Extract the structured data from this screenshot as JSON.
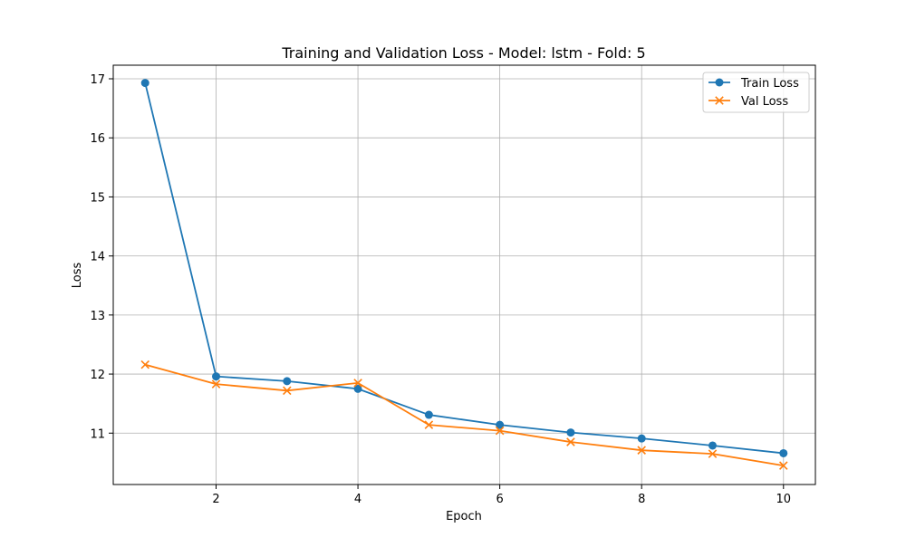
{
  "chart_data": {
    "type": "line",
    "title": "Training and Validation Loss - Model: lstm - Fold: 5",
    "xlabel": "Epoch",
    "ylabel": "Loss",
    "x": [
      1,
      2,
      3,
      4,
      5,
      6,
      7,
      8,
      9,
      10
    ],
    "xlim": [
      0.55,
      10.45
    ],
    "ylim": [
      10.13,
      17.23
    ],
    "xticks": [
      2,
      4,
      6,
      8,
      10
    ],
    "yticks": [
      11,
      12,
      13,
      14,
      15,
      16,
      17
    ],
    "grid": true,
    "legend_position": "top-right",
    "series": [
      {
        "name": "Train Loss",
        "color": "#1f77b4",
        "marker": "circle",
        "values": [
          16.93,
          11.96,
          11.88,
          11.75,
          11.31,
          11.14,
          11.01,
          10.91,
          10.79,
          10.66
        ]
      },
      {
        "name": "Val Loss",
        "color": "#ff7f0e",
        "marker": "x",
        "values": [
          12.16,
          11.83,
          11.72,
          11.85,
          11.14,
          11.04,
          10.85,
          10.71,
          10.65,
          10.45
        ]
      }
    ]
  }
}
